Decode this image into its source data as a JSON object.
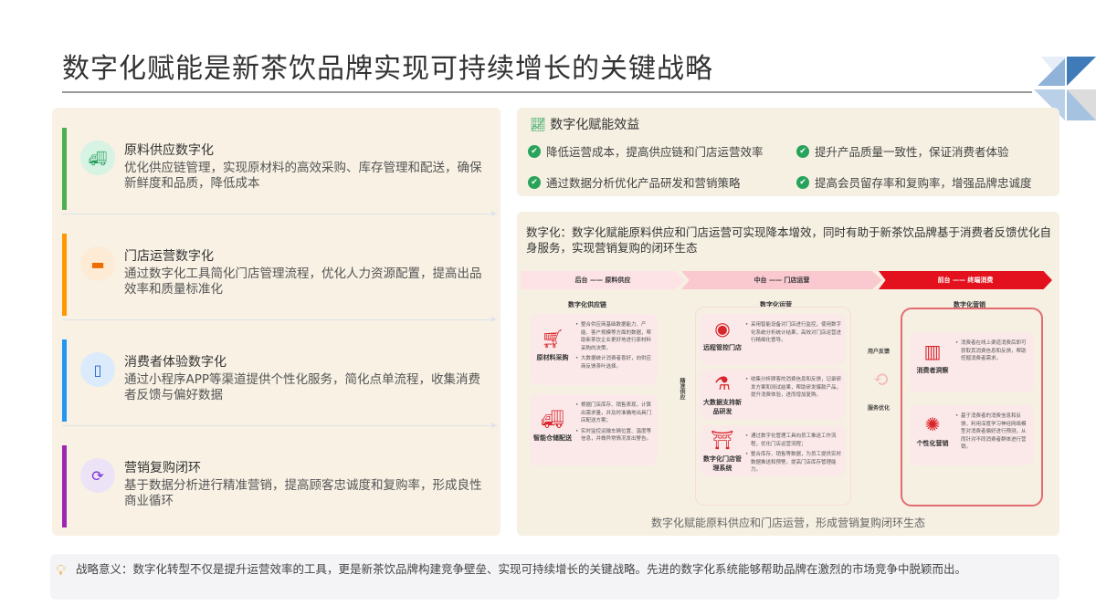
{
  "title": "数字化赋能是新茶饮品牌实现可持续增长的关键战略",
  "left_items": [
    {
      "title": "原料供应数字化",
      "desc": "优化供应链管理，实现原材料的高效采购、库存管理和配送，确保新鲜度和品质，降低成本",
      "icon": "truck-icon",
      "color": "#4caf50",
      "icon_bg": "#d6f3e3",
      "icon_color": "#1f9a5a"
    },
    {
      "title": "门店运营数字化",
      "desc": "通过数字化工具简化门店管理流程，优化人力资源配置，提高出品效率和质量标准化",
      "icon": "store-icon",
      "color": "#ff9800",
      "icon_bg": "#fdebd6",
      "icon_color": "#ef6c00"
    },
    {
      "title": "消费者体验数字化",
      "desc": "通过小程序APP等渠道提供个性化服务，简化点单流程，收集消费者反馈与偏好数据",
      "icon": "tablet-icon",
      "color": "#2196f3",
      "icon_bg": "#dcebfb",
      "icon_color": "#1e63c8"
    },
    {
      "title": "营销复购闭环",
      "desc": "基于数据分析进行精准营销，提高顾客忠诚度和复购率，形成良性商业循环",
      "icon": "refresh-icon",
      "color": "#9c27b0",
      "icon_bg": "#ece3f7",
      "icon_color": "#7b2fd0"
    }
  ],
  "benefits": {
    "title": "数字化赋能效益",
    "items": [
      "降低运营成本，提高供应链和门店运营效率",
      "提升产品质量一致性，保证消费者体验",
      "通过数据分析优化产品研发和营销策略",
      "提高会员留存率和复购率，增强品牌忠诚度"
    ]
  },
  "summary": "数字化：数字化赋能原料供应和门店运营可实现降本增效，同时有助于新茶饮品牌基于消费者反馈优化自身服务，实现营销复购的闭环生态",
  "diagram": {
    "stages": [
      "后台 —— 原料供应",
      "中台 —— 门店运营",
      "前台 —— 终端消费"
    ],
    "columns": [
      "数字化供应链",
      "数字化运营",
      "数字化营销"
    ],
    "side_labels": [
      "精准供应",
      "用户反馈",
      "服务优化"
    ],
    "supply": [
      {
        "label": "原材料采购",
        "bullets": [
          "整合供应商基础数据能力、产能、客户规模等方面的数据，帮助新茶饮企业更好地进行原材料采购的决策。",
          "大数据统计消费者喜好，向供应商反馈茶叶选择。"
        ]
      },
      {
        "label": "智能仓储配送",
        "bullets": [
          "根据门店库存、销售表现，计算出需求量，并及时准确地出具门店配送方案；",
          "实时监控运输车辆位置、温度等信息，并做异常情况发出警告。"
        ]
      }
    ],
    "ops": [
      {
        "label": "远程管控门店",
        "bullets": [
          "采用智能设备对门店进行监控，使用数字化系统分析统计结果，高效对门店运营进行精细化督导。"
        ]
      },
      {
        "label": "大数据支持新品研发",
        "bullets": [
          "收集分析顾客的消费信息和反馈，记录研发方案和测试结果，帮助研发爆款产品，提升消费体验，进而增加复购。"
        ]
      },
      {
        "label": "数字化门店管理系统",
        "bullets": [
          "通过数字化管理工具向员工推送工作流程，优化门店运营流程；",
          "整合库存、销售等数据，为员工提供实时数据推送和预警，提高门店库存管理能力。"
        ]
      }
    ],
    "marketing": [
      {
        "label": "消费者洞察",
        "bullets": [
          "消费者在线上渠道消费后即可获取其消费信息和反馈，帮助挖掘消费者需求。"
        ]
      },
      {
        "label": "个性化营销",
        "bullets": [
          "基于消费者的消费信息和反馈，利用深度学习神经网络模型对消费者偏好进行预测，从而针对不同消费者群体进行营销。"
        ]
      }
    ],
    "caption": "数字化赋能原料供应和门店运营，形成营销复购闭环生态"
  },
  "note": {
    "label": "战略意义：",
    "text": "数字化转型不仅是提升运营效率的工具，更是新茶饮品牌构建竞争壁垒、实现可持续增长的关键战略。先进的数字化系统能够帮助品牌在激烈的市场竞争中脱颖而出。"
  }
}
